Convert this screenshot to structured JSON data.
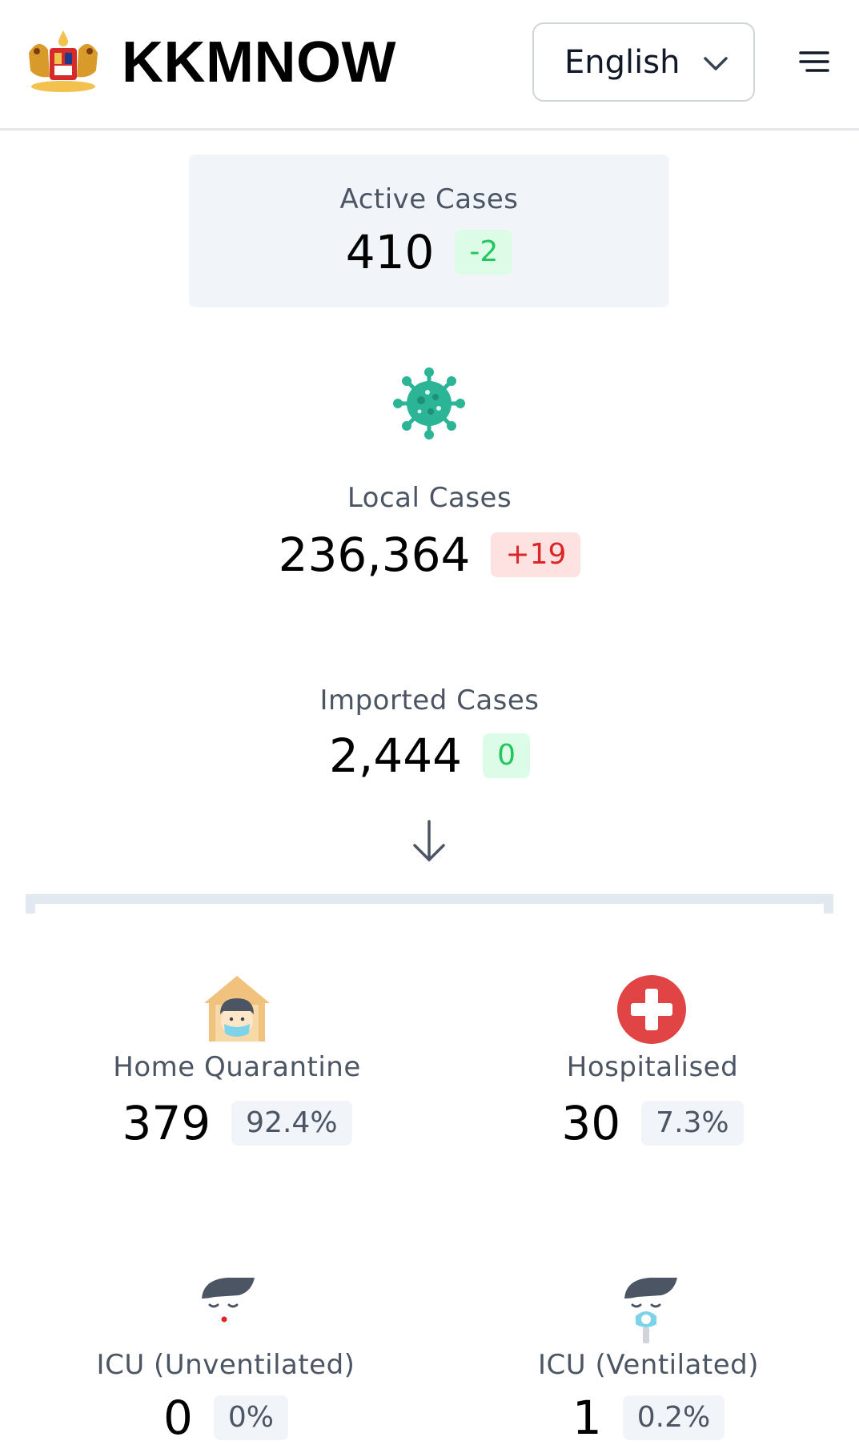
{
  "header": {
    "brand": "KKMNOW",
    "language": "English",
    "logo_icon": "malaysia-coat-of-arms-icon",
    "menu_icon": "hamburger-menu-icon"
  },
  "active": {
    "label": "Active Cases",
    "value": "410",
    "delta": "-2"
  },
  "local": {
    "label": "Local Cases",
    "value": "236,364",
    "delta": "+19",
    "icon": "virus-icon"
  },
  "imported": {
    "label": "Imported Cases",
    "value": "2,444",
    "delta": "0"
  },
  "breakdown": [
    {
      "label": "Home Quarantine",
      "value": "379",
      "pct": "92.4%",
      "icon": "home-quarantine-icon"
    },
    {
      "label": "Hospitalised",
      "value": "30",
      "pct": "7.3%",
      "icon": "hospital-cross-icon"
    },
    {
      "label": "ICU (Unventilated)",
      "value": "0",
      "pct": "0%",
      "icon": "icu-unventilated-icon"
    },
    {
      "label": "ICU (Ventilated)",
      "value": "1",
      "pct": "0.2%",
      "icon": "icu-ventilated-icon"
    }
  ],
  "colors": {
    "green": "#22c55e",
    "red": "#dc2626",
    "teal": "#2bb596",
    "cross": "#e04444",
    "house": "#f1c27d"
  }
}
